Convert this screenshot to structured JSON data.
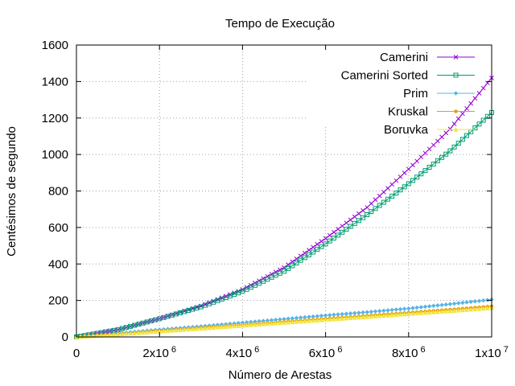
{
  "chart_data": {
    "type": "line",
    "title": "Tempo de Execução",
    "xlabel": "Número de Arestas",
    "ylabel": "Centésimos de segundo",
    "xlim": [
      0,
      10000000
    ],
    "ylim": [
      0,
      1600
    ],
    "grid": true,
    "legend_position": "top-right",
    "x_ticks": [
      {
        "value": 0,
        "base": "0",
        "exp": ""
      },
      {
        "value": 2000000,
        "base": "2x10",
        "exp": "6"
      },
      {
        "value": 4000000,
        "base": "4x10",
        "exp": "6"
      },
      {
        "value": 6000000,
        "base": "6x10",
        "exp": "6"
      },
      {
        "value": 8000000,
        "base": "8x10",
        "exp": "6"
      },
      {
        "value": 10000000,
        "base": "1x10",
        "exp": "7"
      }
    ],
    "y_ticks": [
      {
        "value": 0,
        "label": "0"
      },
      {
        "value": 200,
        "label": "200"
      },
      {
        "value": 400,
        "label": "400"
      },
      {
        "value": 600,
        "label": "600"
      },
      {
        "value": 800,
        "label": "800"
      },
      {
        "value": 1000,
        "label": "1000"
      },
      {
        "value": 1200,
        "label": "1200"
      },
      {
        "value": 1400,
        "label": "1400"
      },
      {
        "value": 1600,
        "label": "1600"
      }
    ],
    "x": [
      0,
      1000000,
      2000000,
      3000000,
      4000000,
      5000000,
      6000000,
      7000000,
      8000000,
      9000000,
      10000000
    ],
    "series": [
      {
        "name": "Camerini",
        "color": "#9400d3",
        "marker": "x",
        "values": [
          0,
          40,
          100,
          170,
          260,
          380,
          540,
          710,
          920,
          1140,
          1420
        ]
      },
      {
        "name": "Camerini Sorted",
        "color": "#009e73",
        "marker": "square",
        "values": [
          0,
          40,
          100,
          165,
          250,
          360,
          510,
          670,
          840,
          1020,
          1230
        ]
      },
      {
        "name": "Prim",
        "color": "#56b4e9",
        "marker": "diamond",
        "values": [
          0,
          20,
          40,
          58,
          78,
          98,
          118,
          136,
          156,
          180,
          205
        ]
      },
      {
        "name": "Kruskal",
        "color": "#e69f00",
        "marker": "circle",
        "values": [
          0,
          16,
          33,
          50,
          66,
          83,
          100,
          116,
          133,
          150,
          168
        ]
      },
      {
        "name": "Boruvka",
        "color": "#f0e442",
        "marker": "triangle",
        "values": [
          0,
          15,
          31,
          47,
          63,
          79,
          95,
          111,
          127,
          143,
          160
        ]
      }
    ]
  }
}
